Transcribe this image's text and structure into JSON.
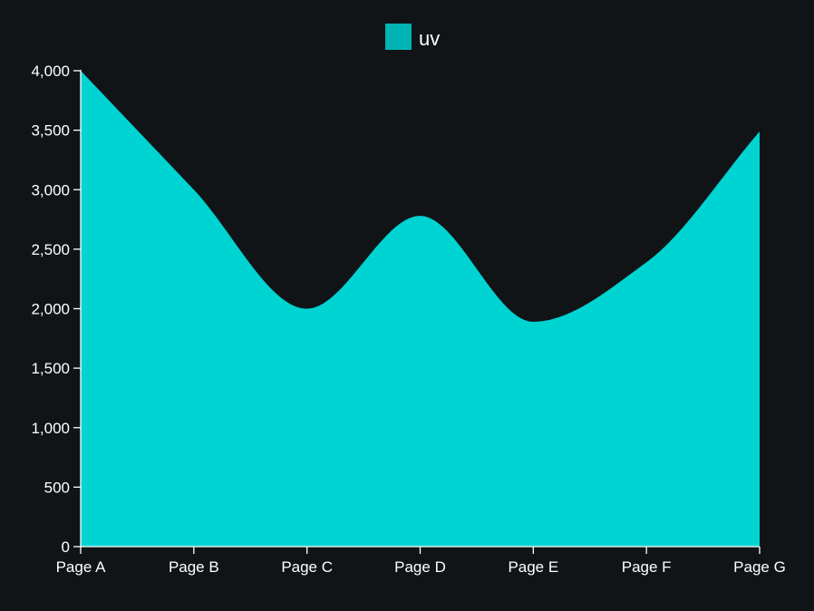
{
  "chart_data": {
    "type": "area",
    "categories": [
      "Page A",
      "Page B",
      "Page C",
      "Page D",
      "Page E",
      "Page F",
      "Page G"
    ],
    "series": [
      {
        "name": "uv",
        "values": [
          4000,
          3000,
          2000,
          2780,
          1890,
          2390,
          3490
        ]
      }
    ],
    "ylim": [
      0,
      4000
    ],
    "yticks": [
      0,
      500,
      1000,
      1500,
      2000,
      2500,
      3000,
      3500,
      4000
    ],
    "grid": false,
    "legend_position": "top-center",
    "colors": {
      "background": "#111417",
      "area_fill": "#00d4d2",
      "legend_swatch": "#00b3b5",
      "axis": "#ffffff",
      "text": "#ffffff"
    }
  }
}
